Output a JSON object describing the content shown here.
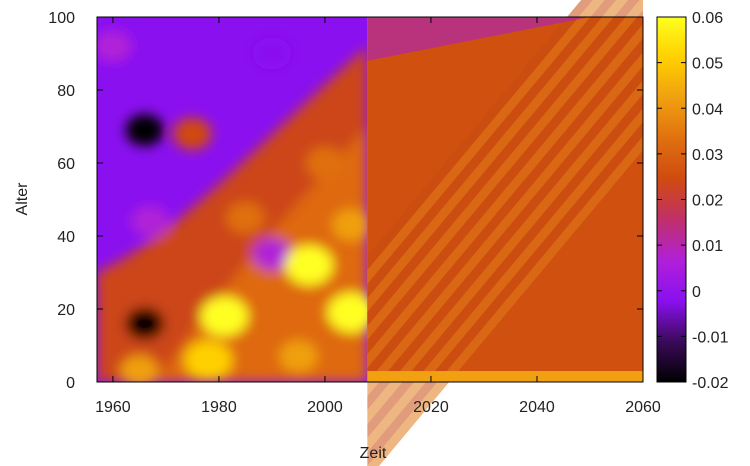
{
  "chart_data": {
    "type": "heatmap",
    "xlabel": "Zeit",
    "ylabel": "Alter",
    "xlim": [
      1957,
      2060
    ],
    "ylim": [
      0,
      100
    ],
    "x_ticks": [
      1960,
      1980,
      2000,
      2020,
      2040,
      2060
    ],
    "y_ticks": [
      0,
      20,
      40,
      60,
      80,
      100
    ],
    "historical_until": 2008,
    "colorbar": {
      "range": [
        -0.02,
        0.06
      ],
      "ticks": [
        -0.02,
        -0.01,
        0,
        0.01,
        0.02,
        0.03,
        0.04,
        0.05,
        0.06
      ],
      "tick_labels": [
        "-0.02",
        "-0.01",
        "0",
        "0.01",
        "0.02",
        "0.03",
        "0.04",
        "0.05",
        "0.06"
      ],
      "colormap": [
        "#000000",
        "#3a0a5a",
        "#8a10f0",
        "#b020d8",
        "#c0306a",
        "#d04a10",
        "#e07010",
        "#f0a010",
        "#ffd000",
        "#ffff20"
      ]
    },
    "features": [
      {
        "x": 1966,
        "y": 69,
        "value": -0.018
      },
      {
        "x": 1966,
        "y": 16,
        "value": -0.02
      },
      {
        "x": 1967,
        "y": 44,
        "value": 0.003
      },
      {
        "x": 1990,
        "y": 35,
        "value": 0.005
      },
      {
        "x": 1981,
        "y": 18,
        "value": 0.058
      },
      {
        "x": 1997,
        "y": 32,
        "value": 0.057
      },
      {
        "x": 2005,
        "y": 19,
        "value": 0.06
      },
      {
        "x": 2005,
        "y": 43,
        "value": 0.045
      },
      {
        "x": 1978,
        "y": 6,
        "value": 0.055
      },
      {
        "x": 1995,
        "y": 7,
        "value": 0.045
      },
      {
        "x": 1965,
        "y": 3,
        "value": 0.04
      },
      {
        "x": 1985,
        "y": 45,
        "value": 0.035
      },
      {
        "x": 2000,
        "y": 60,
        "value": 0.035
      },
      {
        "x": 1975,
        "y": 68,
        "value": 0.02
      },
      {
        "x": 1960,
        "y": 92,
        "value": 0.008
      },
      {
        "x": 1990,
        "y": 90,
        "value": 0.002
      }
    ]
  }
}
